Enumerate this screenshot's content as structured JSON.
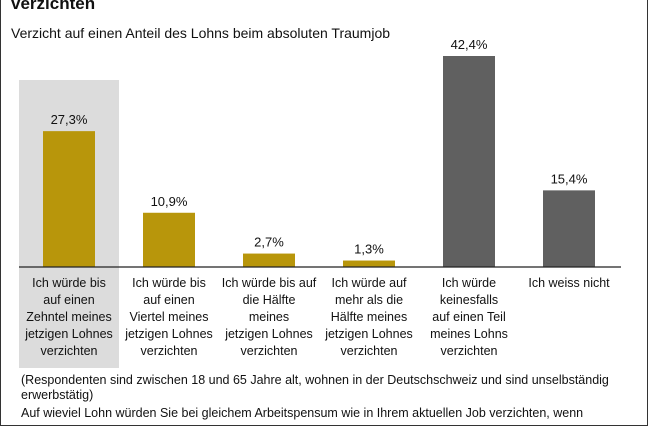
{
  "title": "verzichten",
  "subtitle": "Verzicht auf einen Anteil des Lohns beim absoluten Traumjob",
  "colors": {
    "gold": "#b8960b",
    "gray": "#606060",
    "highlight": "#dcdcdc",
    "axis": "#222222"
  },
  "chart_data": {
    "type": "bar",
    "categories": [
      "Ich würde bis auf einen Zehntel meines jetzigen Lohnes verzichten",
      "Ich würde bis auf einen Viertel meines jetzigen Lohnes verzichten",
      "Ich würde bis auf die Hälfte meines jetzigen Lohnes verzichten",
      "Ich würde auf mehr als die Hälfte meines jetzigen Lohnes verzichten",
      "Ich würde keinesfalls auf einen Teil meines Lohns verzichten",
      "Ich weiss nicht"
    ],
    "category_lines": [
      [
        "Ich würde bis",
        "auf einen",
        "Zehntel meines",
        "jetzigen Lohnes",
        "verzichten"
      ],
      [
        "Ich würde bis",
        "auf einen",
        "Viertel meines",
        "jetzigen Lohnes",
        "verzichten"
      ],
      [
        "Ich würde bis auf",
        "die Hälfte",
        "meines",
        "jetzigen Lohnes",
        "verzichten"
      ],
      [
        "Ich würde auf",
        "mehr als die",
        "Hälfte meines",
        "jetzigen Lohnes",
        "verzichten"
      ],
      [
        "Ich würde",
        "keinesfalls",
        "auf einen Teil",
        "meines Lohns",
        "verzichten"
      ],
      [
        "Ich weiss nicht"
      ]
    ],
    "values": [
      27.3,
      10.9,
      2.7,
      1.3,
      42.4,
      15.4
    ],
    "value_labels": [
      "27,3%",
      "10,9%",
      "2,7%",
      "1,3%",
      "42,4%",
      "15,4%"
    ],
    "bar_colors": [
      "gold",
      "gold",
      "gold",
      "gold",
      "gray",
      "gray"
    ],
    "highlighted_index": 0,
    "ylim": [
      0,
      42.4
    ],
    "grid": false,
    "legend": "none"
  },
  "footnotes": [
    "(Respondenten sind zwischen 18 und 65 Jahre alt, wohnen in der Deutschschweiz und sind unselbständig erwerbstätig)",
    "Auf wieviel Lohn würden Sie  bei gleichem Arbeitspensum wie in Ihrem aktuellen Job  verzichten, wenn"
  ]
}
